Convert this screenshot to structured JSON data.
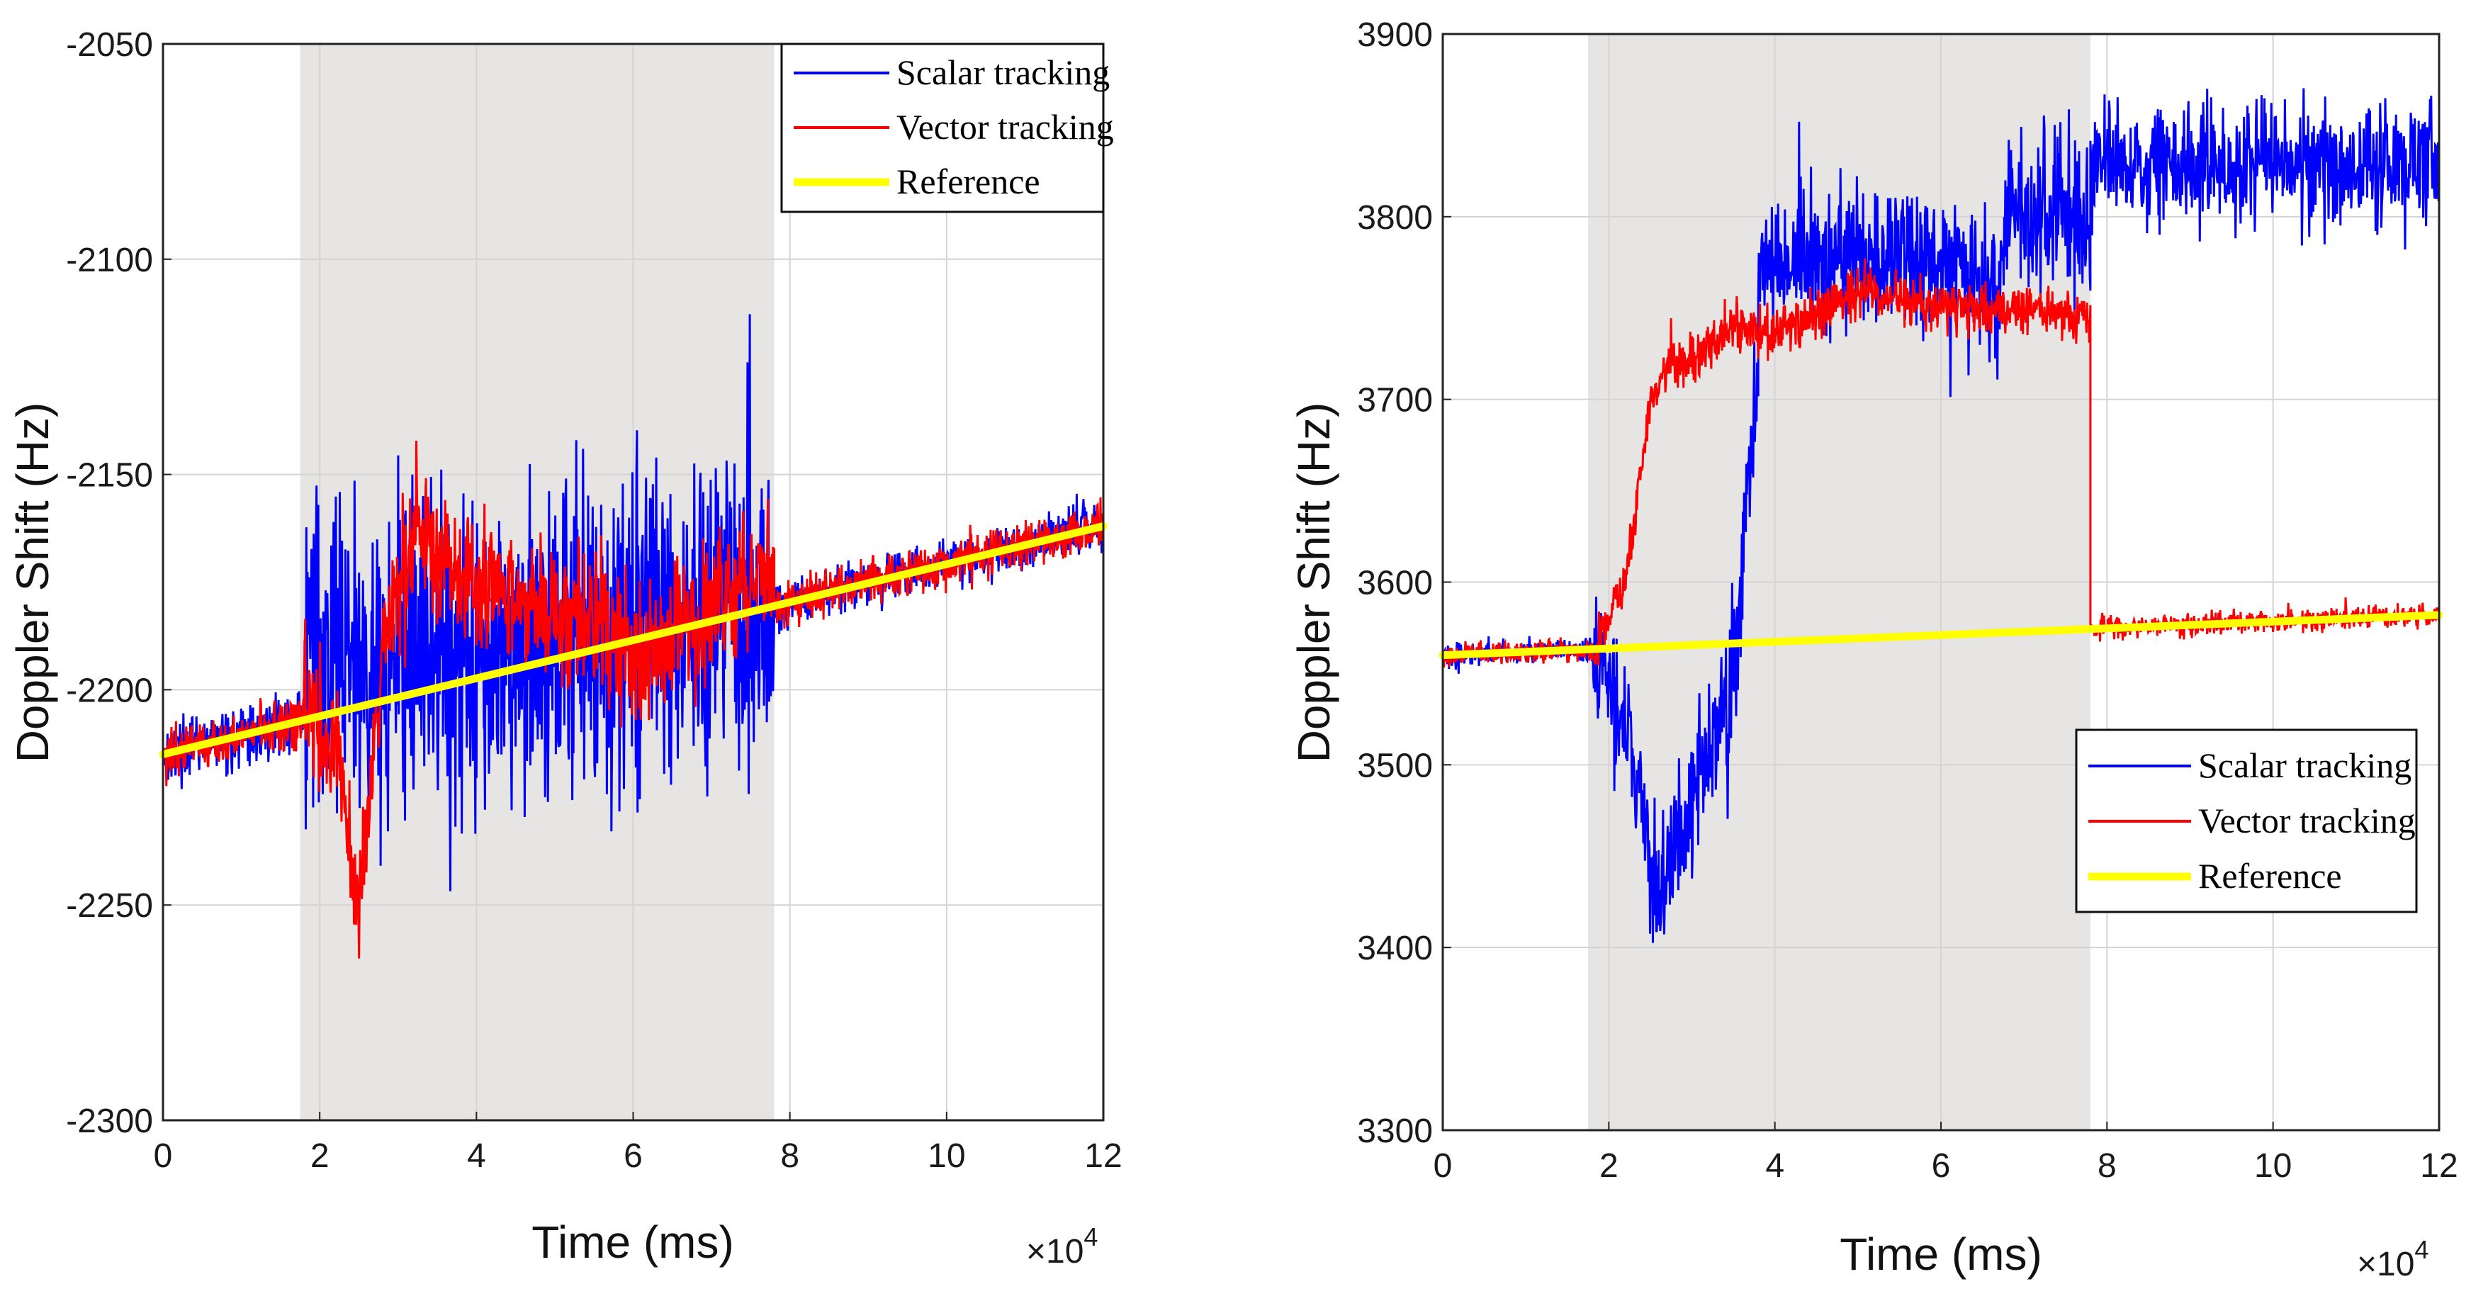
{
  "chart_data": [
    {
      "type": "line",
      "title": "",
      "xlabel": "Time (ms)",
      "ylabel": "Doppler Shift (Hz)",
      "x_multiplier_label": "×10",
      "x_multiplier_exponent": "4",
      "xlim": [
        0,
        12
      ],
      "ylim": [
        -2300,
        -2050
      ],
      "xticks": [
        0,
        2,
        4,
        6,
        8,
        10,
        12
      ],
      "yticks": [
        -2050,
        -2100,
        -2150,
        -2200,
        -2250,
        -2300
      ],
      "grid": true,
      "legend_position": "top-right",
      "shaded_region": [
        1.75,
        7.8
      ],
      "series": [
        {
          "name": "Scalar tracking",
          "color": "#0000ff",
          "segments": [
            {
              "x_range": [
                0,
                1.8
              ],
              "center": "reference",
              "amplitude": 10
            },
            {
              "x_range": [
                1.8,
                7.8
              ],
              "center": [
                [
                  1.8,
                  -2190
                ],
                [
                  2.6,
                  -2195
                ],
                [
                  4.0,
                  -2190
                ],
                [
                  6.0,
                  -2185
                ],
                [
                  7.8,
                  -2180
                ]
              ],
              "amplitude": 55
            },
            {
              "x_range": [
                7.8,
                12
              ],
              "center": "reference",
              "amplitude": 8
            }
          ]
        },
        {
          "name": "Vector tracking",
          "color": "#ff0000",
          "segments": [
            {
              "x_range": [
                0,
                1.8
              ],
              "center": "reference",
              "amplitude": 9
            },
            {
              "x_range": [
                1.8,
                7.8
              ],
              "center": [
                [
                  1.8,
                  -2200
                ],
                [
                  2.2,
                  -2215
                ],
                [
                  2.5,
                  -2250
                ],
                [
                  2.8,
                  -2190
                ],
                [
                  3.2,
                  -2165
                ],
                [
                  4.0,
                  -2175
                ],
                [
                  4.8,
                  -2180
                ],
                [
                  5.5,
                  -2185
                ],
                [
                  6.0,
                  -2195
                ],
                [
                  6.8,
                  -2185
                ],
                [
                  7.8,
                  -2170
                ]
              ],
              "amplitude": 22
            },
            {
              "x_range": [
                7.8,
                12
              ],
              "center": "reference",
              "amplitude": 8
            }
          ]
        },
        {
          "name": "Reference",
          "color": "#ffff00",
          "x": [
            0,
            12
          ],
          "values": [
            -2215,
            -2162
          ]
        }
      ]
    },
    {
      "type": "line",
      "title": "",
      "xlabel": "Time (ms)",
      "ylabel": "Doppler Shift (Hz)",
      "x_multiplier_label": "×10",
      "x_multiplier_exponent": "4",
      "xlim": [
        0,
        12
      ],
      "ylim": [
        3300,
        3900
      ],
      "xticks": [
        0,
        2,
        4,
        6,
        8,
        10,
        12
      ],
      "yticks": [
        3900,
        3800,
        3700,
        3600,
        3500,
        3400,
        3300
      ],
      "grid": true,
      "legend_position": "bottom-right",
      "shaded_region": [
        1.75,
        7.8
      ],
      "series": [
        {
          "name": "Scalar tracking",
          "color": "#0000ff",
          "segments": [
            {
              "x_range": [
                0,
                1.8
              ],
              "center": "reference",
              "amplitude": 10
            },
            {
              "x_range": [
                1.8,
                3.8
              ],
              "center": [
                [
                  1.8,
                  3570
                ],
                [
                  2.0,
                  3545
                ],
                [
                  2.3,
                  3500
                ],
                [
                  2.6,
                  3430
                ],
                [
                  2.8,
                  3450
                ],
                [
                  3.2,
                  3510
                ],
                [
                  3.5,
                  3550
                ],
                [
                  3.8,
                  3720
                ]
              ],
              "amplitude": 60
            },
            {
              "x_range": [
                3.8,
                7.8
              ],
              "center": [
                [
                  3.8,
                  3770
                ],
                [
                  5.0,
                  3780
                ],
                [
                  6.0,
                  3780
                ],
                [
                  6.7,
                  3760
                ],
                [
                  6.8,
                  3800
                ],
                [
                  7.8,
                  3800
                ]
              ],
              "amplitude": 60
            },
            {
              "x_range": [
                7.8,
                12
              ],
              "center": [
                [
                  7.8,
                  3828
                ],
                [
                  12,
                  3828
                ]
              ],
              "amplitude": 48
            }
          ]
        },
        {
          "name": "Vector tracking",
          "color": "#ff0000",
          "segments": [
            {
              "x_range": [
                0,
                1.8
              ],
              "center": "reference",
              "amplitude": 9
            },
            {
              "x_range": [
                1.8,
                7.8
              ],
              "center": [
                [
                  1.8,
                  3560
                ],
                [
                  2.2,
                  3600
                ],
                [
                  2.5,
                  3700
                ],
                [
                  2.7,
                  3720
                ],
                [
                  3.0,
                  3720
                ],
                [
                  3.5,
                  3740
                ],
                [
                  4.0,
                  3735
                ],
                [
                  4.6,
                  3750
                ],
                [
                  5.0,
                  3760
                ],
                [
                  5.5,
                  3755
                ],
                [
                  6.0,
                  3750
                ],
                [
                  7.0,
                  3750
                ],
                [
                  7.8,
                  3745
                ]
              ],
              "amplitude": 20
            },
            {
              "x_range": [
                7.8,
                12
              ],
              "center": "reference",
              "amplitude": 9
            }
          ]
        },
        {
          "name": "Reference",
          "color": "#ffff00",
          "x": [
            0,
            12
          ],
          "values": [
            3560,
            3582
          ]
        }
      ]
    }
  ]
}
